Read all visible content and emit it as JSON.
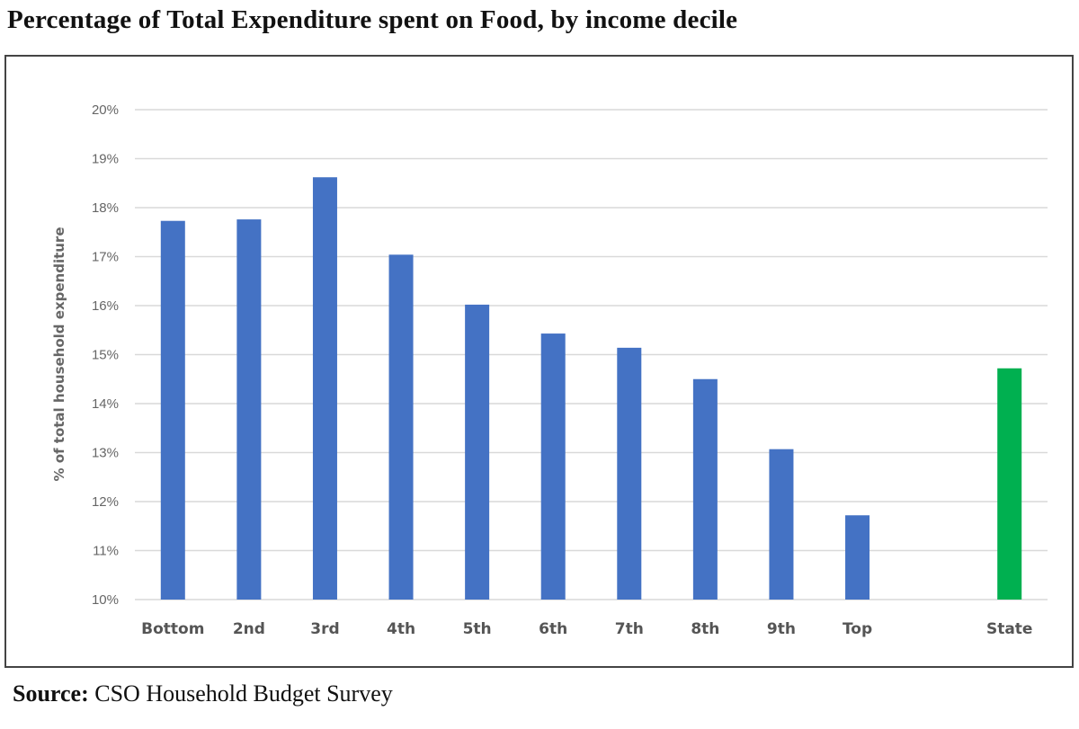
{
  "header": {
    "title": "Percentage of Total Expenditure spent on Food, by income decile"
  },
  "footer": {
    "source_label": "Source:",
    "source_text": " CSO Household Budget Survey"
  },
  "chart_data": {
    "type": "bar",
    "title": "Percentage of Total Expenditure spent on Food, by income decile",
    "xlabel": "",
    "ylabel": "% of total household expenditure",
    "ylim": [
      10,
      20
    ],
    "yticks": [
      10,
      11,
      12,
      13,
      14,
      15,
      16,
      17,
      18,
      19,
      20
    ],
    "ytick_labels": [
      "10%",
      "11%",
      "12%",
      "13%",
      "14%",
      "15%",
      "16%",
      "17%",
      "18%",
      "19%",
      "20%"
    ],
    "grid": true,
    "legend": "none",
    "categories": [
      "Bottom",
      "2nd",
      "3rd",
      "4th",
      "5th",
      "6th",
      "7th",
      "8th",
      "9th",
      "Top",
      "",
      "State"
    ],
    "values": [
      17.73,
      17.76,
      18.62,
      17.04,
      16.02,
      15.43,
      15.14,
      14.5,
      13.07,
      11.72,
      null,
      14.72
    ],
    "colors": [
      "#4472C4",
      "#4472C4",
      "#4472C4",
      "#4472C4",
      "#4472C4",
      "#4472C4",
      "#4472C4",
      "#4472C4",
      "#4472C4",
      "#4472C4",
      null,
      "#00B050"
    ],
    "unit": "%"
  }
}
